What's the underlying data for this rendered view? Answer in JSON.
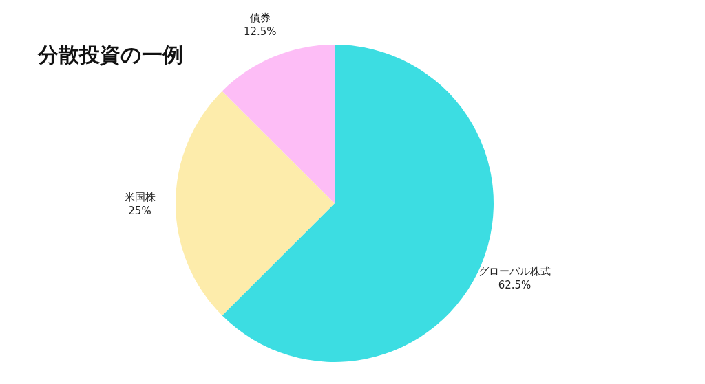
{
  "chart_data": {
    "type": "pie",
    "title": "分散投資の一例",
    "categories": [
      "グローバル株式",
      "米国株",
      "債券"
    ],
    "values": [
      62.5,
      25,
      12.5
    ],
    "colors": [
      "#3cdde2",
      "#fdecab",
      "#fdbdf6"
    ],
    "value_labels": [
      "62.5%",
      "25%",
      "12.5%"
    ]
  }
}
